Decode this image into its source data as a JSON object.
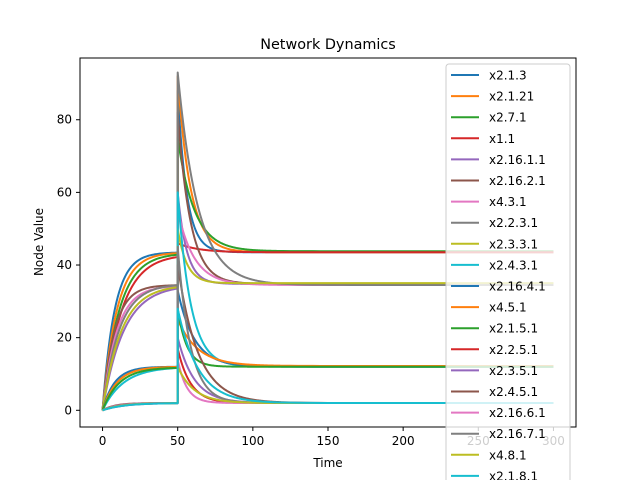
{
  "chart_data": {
    "type": "line",
    "title": "Network Dynamics",
    "xlabel": "Time",
    "ylabel": "Node Value",
    "xlim": [
      -15,
      315
    ],
    "ylim": [
      -4.6,
      97
    ],
    "xticks": [
      0,
      50,
      100,
      150,
      200,
      250,
      300
    ],
    "yticks": [
      0,
      20,
      40,
      60,
      80
    ],
    "grid": false,
    "legend_placement": "top-right",
    "perturbation_time": 50,
    "colors": [
      "#1f77b4",
      "#ff7f0e",
      "#2ca02c",
      "#d62728",
      "#9467bd",
      "#8c564b",
      "#e377c2",
      "#7f7f7f",
      "#bcbd22",
      "#17becf"
    ],
    "series": [
      {
        "name": "x2.1.3",
        "color": "#1f77b4",
        "steady_before": 43.5,
        "peak_after_perturbation": 88,
        "steady_after": 43.5
      },
      {
        "name": "x2.1.21",
        "color": "#ff7f0e",
        "steady_before": 43.5,
        "peak_after_perturbation": 92,
        "steady_after": 43.5
      },
      {
        "name": "x2.7.1",
        "color": "#2ca02c",
        "steady_before": 43.3,
        "peak_after_perturbation": 75,
        "steady_after": 43.8
      },
      {
        "name": "x1.1",
        "color": "#d62728",
        "steady_before": 43.0,
        "peak_after_perturbation": 46,
        "steady_after": 43.5
      },
      {
        "name": "x2.16.1.1",
        "color": "#9467bd",
        "steady_before": 34.5,
        "peak_after_perturbation": 60,
        "steady_after": 34.8
      },
      {
        "name": "x2.16.2.1",
        "color": "#8c564b",
        "steady_before": 34.5,
        "peak_after_perturbation": 82,
        "steady_after": 34.8
      },
      {
        "name": "x4.3.1",
        "color": "#e377c2",
        "steady_before": 34.3,
        "peak_after_perturbation": 55,
        "steady_after": 34.5
      },
      {
        "name": "x2.2.3.1",
        "color": "#7f7f7f",
        "steady_before": 34.8,
        "peak_after_perturbation": 93,
        "steady_after": 34.5
      },
      {
        "name": "x2.3.3.1",
        "color": "#bcbd22",
        "steady_before": 34.5,
        "peak_after_perturbation": 50,
        "steady_after": 35.0
      },
      {
        "name": "x2.4.3.1",
        "color": "#17becf",
        "steady_before": 12.0,
        "peak_after_perturbation": 60,
        "steady_after": 12.0
      },
      {
        "name": "x2.16.4.1",
        "color": "#1f77b4",
        "steady_before": 12.0,
        "peak_after_perturbation": 33,
        "steady_after": 12.0
      },
      {
        "name": "x4.5.1",
        "color": "#ff7f0e",
        "steady_before": 12.0,
        "peak_after_perturbation": 25,
        "steady_after": 12.2
      },
      {
        "name": "x2.1.5.1",
        "color": "#2ca02c",
        "steady_before": 11.8,
        "peak_after_perturbation": 28,
        "steady_after": 12.0
      },
      {
        "name": "x2.2.5.1",
        "color": "#d62728",
        "steady_before": 2.0,
        "peak_after_perturbation": 17,
        "steady_after": 2.0
      },
      {
        "name": "x2.3.5.1",
        "color": "#9467bd",
        "steady_before": 2.0,
        "peak_after_perturbation": 20,
        "steady_after": 2.0
      },
      {
        "name": "x2.4.5.1",
        "color": "#8c564b",
        "steady_before": 2.0,
        "peak_after_perturbation": 40,
        "steady_after": 2.0
      },
      {
        "name": "x2.16.6.1",
        "color": "#e377c2",
        "steady_before": 2.0,
        "peak_after_perturbation": 14,
        "steady_after": 2.0
      },
      {
        "name": "x2.16.7.1",
        "color": "#7f7f7f",
        "steady_before": 2.0,
        "peak_after_perturbation": 45,
        "steady_after": 2.0
      },
      {
        "name": "x4.8.1",
        "color": "#bcbd22",
        "steady_before": 2.0,
        "peak_after_perturbation": 12,
        "steady_after": 2.0
      },
      {
        "name": "x2.1.8.1",
        "color": "#17becf",
        "steady_before": 2.0,
        "peak_after_perturbation": 28,
        "steady_after": 2.0
      }
    ]
  }
}
